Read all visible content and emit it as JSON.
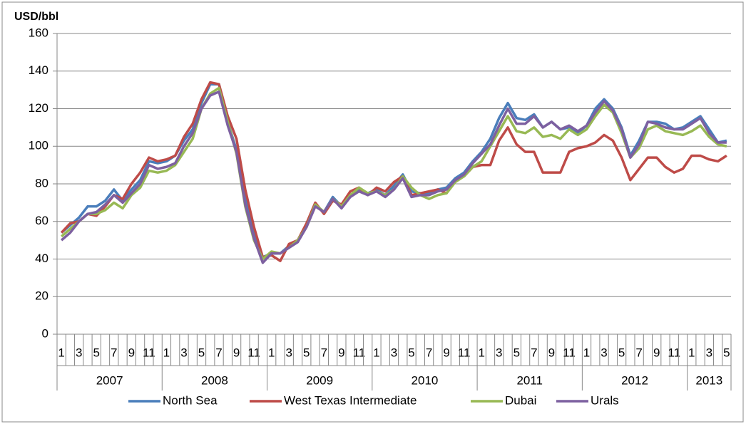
{
  "chart_data": {
    "type": "line",
    "y_label": "USD/bbl",
    "categories": [
      "1",
      null,
      "3",
      null,
      "5",
      null,
      "7",
      null,
      "9",
      null,
      "11",
      null,
      "1",
      null,
      "3",
      null,
      "5",
      null,
      "7",
      null,
      "9",
      null,
      "11",
      null,
      "1",
      null,
      "3",
      null,
      "5",
      null,
      "7",
      null,
      "9",
      null,
      "11",
      null,
      "1",
      null,
      "3",
      null,
      "5",
      null,
      "7",
      null,
      "9",
      null,
      "11",
      null,
      "1",
      null,
      "3",
      null,
      "5",
      null,
      "7",
      null,
      "9",
      null,
      "11",
      null,
      "1",
      null,
      "3",
      null,
      "5",
      null,
      "7",
      null,
      "9",
      null,
      "11",
      null,
      "1",
      null,
      "3",
      null,
      "5"
    ],
    "years": [
      "2007",
      "2008",
      "2009",
      "2010",
      "2011",
      "2012",
      "2013"
    ],
    "ylim": [
      0,
      160
    ],
    "yticks": [
      0,
      20,
      40,
      60,
      80,
      100,
      120,
      140,
      160
    ],
    "grid": true,
    "legend": "bottom",
    "series": [
      {
        "name": "North Sea",
        "color": "#4a7ebb",
        "values": [
          54,
          58,
          62,
          68,
          68,
          71,
          77,
          71,
          77,
          82,
          92,
          91,
          92,
          95,
          103,
          109,
          123,
          133,
          133,
          113,
          98,
          72,
          53,
          41,
          43,
          43,
          47,
          50,
          58,
          69,
          65,
          73,
          68,
          73,
          77,
          75,
          77,
          74,
          79,
          85,
          76,
          75,
          75,
          77,
          78,
          83,
          86,
          92,
          97,
          104,
          115,
          123,
          115,
          114,
          117,
          110,
          113,
          109,
          110,
          107,
          111,
          120,
          125,
          120,
          110,
          95,
          103,
          113,
          113,
          112,
          109,
          110,
          113,
          116,
          109,
          102,
          103
        ]
      },
      {
        "name": "West Texas Intermediate",
        "color": "#be4b48",
        "values": [
          54,
          59,
          60,
          64,
          63,
          68,
          74,
          72,
          80,
          86,
          94,
          92,
          93,
          95,
          105,
          112,
          125,
          134,
          133,
          116,
          104,
          77,
          57,
          41,
          42,
          39,
          48,
          50,
          59,
          70,
          64,
          71,
          69,
          76,
          78,
          74,
          78,
          76,
          81,
          84,
          74,
          75,
          76,
          77,
          75,
          82,
          84,
          89,
          90,
          90,
          103,
          110,
          101,
          97,
          97,
          86,
          86,
          86,
          97,
          99,
          100,
          102,
          106,
          103,
          94,
          82,
          88,
          94,
          94,
          89,
          86,
          88,
          95,
          95,
          93,
          92,
          95
        ]
      },
      {
        "name": "Dubai",
        "color": "#98b954",
        "values": [
          52,
          56,
          60,
          64,
          64,
          66,
          70,
          67,
          74,
          78,
          87,
          86,
          87,
          90,
          97,
          104,
          120,
          128,
          131,
          113,
          96,
          68,
          50,
          40,
          44,
          43,
          46,
          50,
          57,
          69,
          65,
          72,
          68,
          74,
          78,
          75,
          76,
          74,
          77,
          84,
          78,
          74,
          72,
          74,
          75,
          81,
          84,
          89,
          92,
          100,
          108,
          116,
          108,
          107,
          110,
          105,
          106,
          104,
          109,
          106,
          109,
          116,
          122,
          118,
          107,
          94,
          99,
          109,
          111,
          108,
          107,
          106,
          108,
          111,
          105,
          101,
          100
        ]
      },
      {
        "name": "Urals",
        "color": "#7d60a0",
        "values": [
          50,
          54,
          60,
          64,
          65,
          69,
          74,
          70,
          75,
          80,
          90,
          88,
          89,
          91,
          100,
          107,
          120,
          127,
          129,
          111,
          97,
          69,
          51,
          38,
          43,
          43,
          46,
          49,
          57,
          68,
          65,
          72,
          67,
          73,
          76,
          74,
          76,
          73,
          77,
          83,
          73,
          74,
          74,
          76,
          77,
          82,
          85,
          91,
          96,
          101,
          111,
          120,
          112,
          112,
          116,
          110,
          113,
          109,
          111,
          108,
          111,
          118,
          124,
          119,
          109,
          94,
          101,
          113,
          112,
          110,
          109,
          109,
          112,
          115,
          107,
          102,
          102
        ]
      }
    ]
  }
}
